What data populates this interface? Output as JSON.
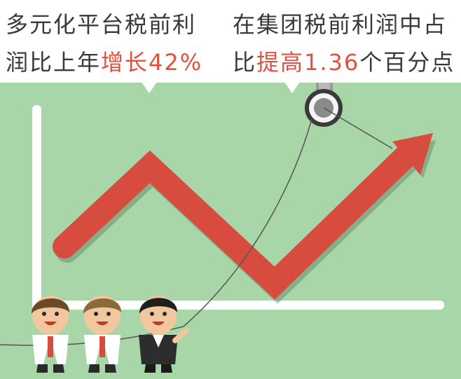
{
  "left_callout": {
    "line1": "多元化平台税前利",
    "line2_prefix": "润比上年",
    "line2_highlight": "增长42%"
  },
  "right_callout": {
    "line1": "在集团税前利润中占",
    "line2_prefix": "比",
    "line2_highlight": "提高1.36",
    "line2_suffix": "个百分点"
  },
  "colors": {
    "background": "#a8d6a8",
    "arrow": "#d84b3f",
    "highlight_text": "#e0523f",
    "body_text": "#3a3a3a"
  },
  "icons": [
    "up-trend-arrow-icon",
    "pulley-icon",
    "businessman-icon"
  ]
}
